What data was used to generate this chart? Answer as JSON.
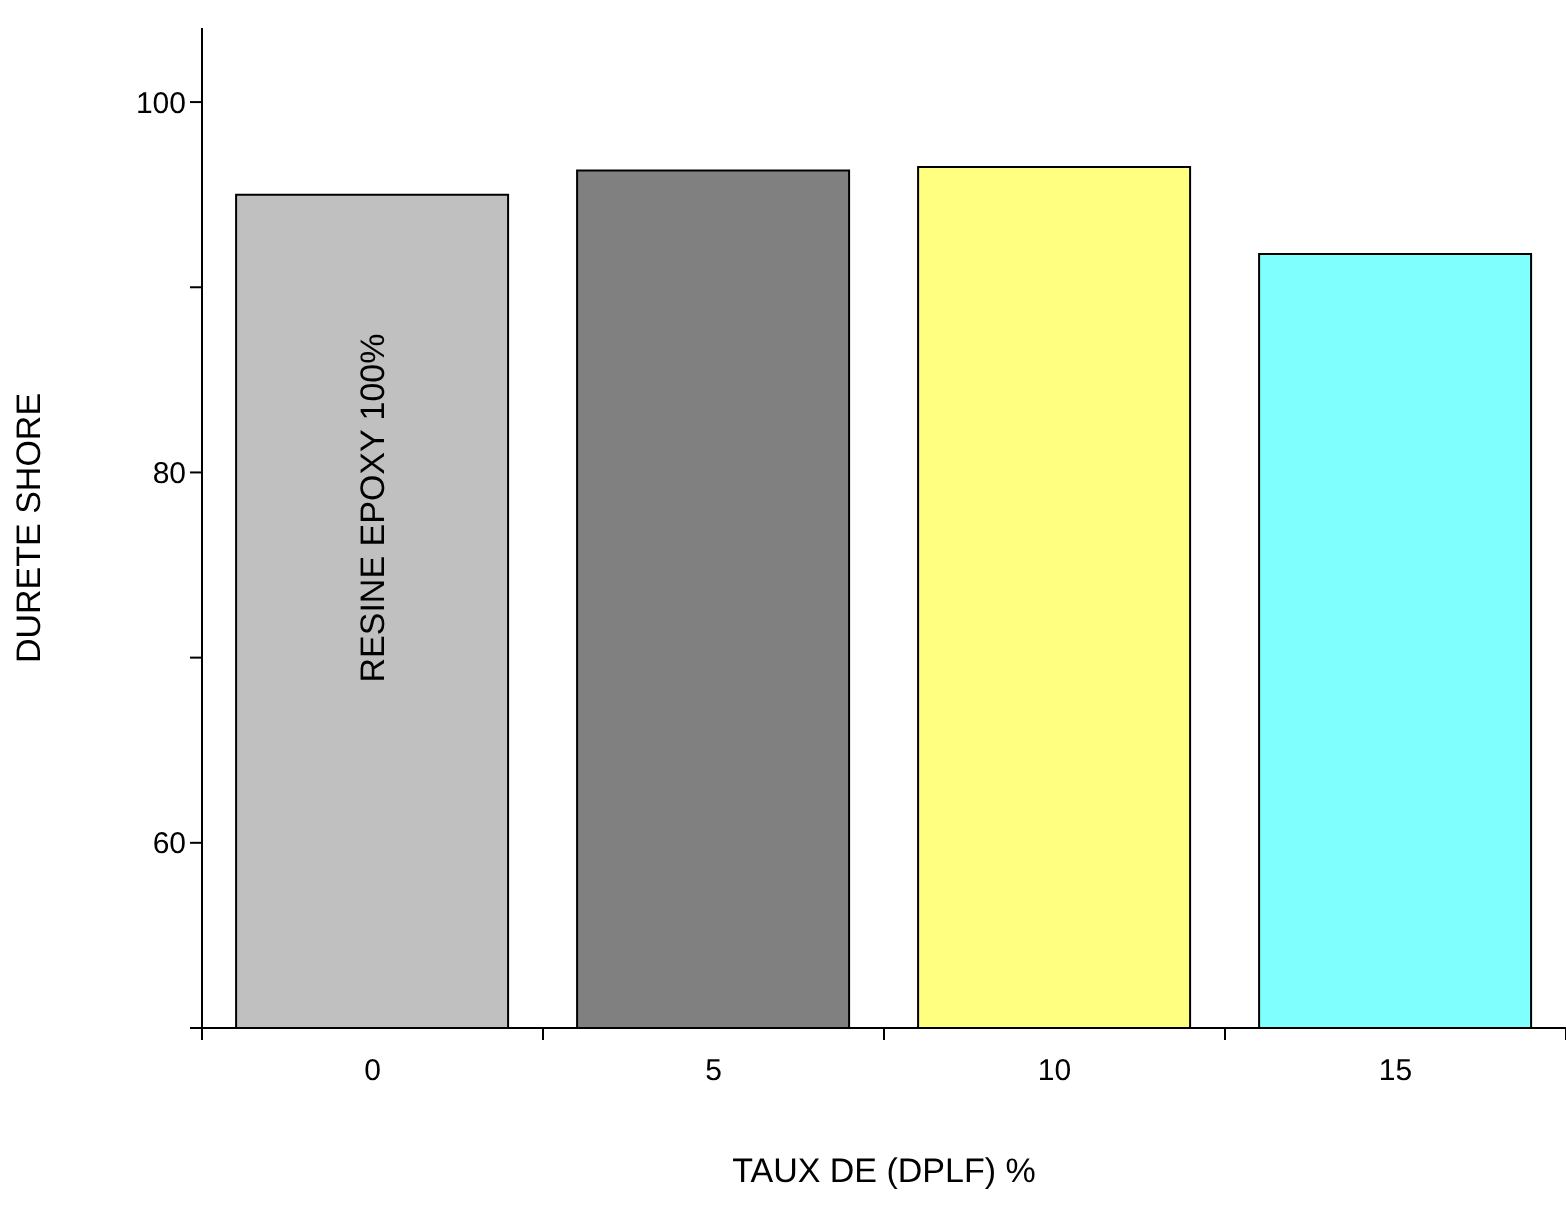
{
  "chart_data": {
    "type": "bar",
    "xlabel": "TAUX DE (DPLF) %",
    "ylabel": "DURETE SHORE",
    "categories": [
      "0",
      "5",
      "10",
      "15"
    ],
    "values": [
      95,
      96.3,
      96.5,
      91.8
    ],
    "colors": [
      "#c0c0c0",
      "#808080",
      "#ffff80",
      "#80ffff"
    ],
    "ylim": [
      50,
      104
    ],
    "yticks": [
      {
        "value": 50,
        "label": null
      },
      60,
      {
        "value": 70,
        "label": null
      },
      80,
      {
        "value": 90,
        "label": null
      },
      100
    ],
    "grid": false,
    "legend": false,
    "annotations": [
      "RESINE EPOXY 100%"
    ]
  }
}
